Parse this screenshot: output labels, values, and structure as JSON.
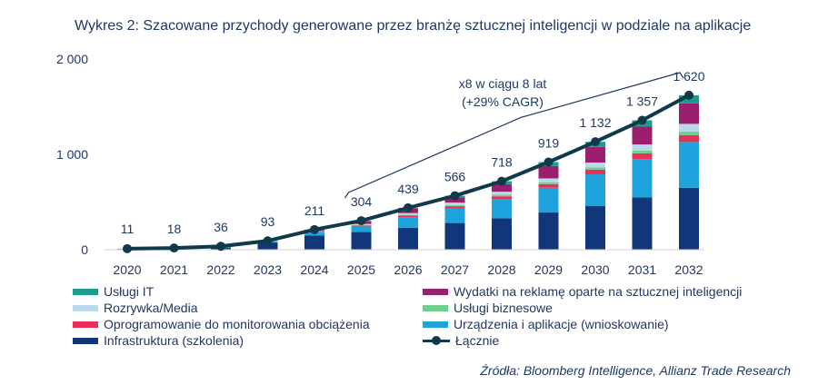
{
  "title": "Wykres 2: Szacowane przychody generowane przez branżę sztucznej inteligencji w podziale na aplikacje",
  "source": "Źródła: Bloomberg Intelligence, Allianz Trade Research",
  "annotation": {
    "line1": "x8 w ciągu 8 lat",
    "line2": "(+29% CAGR)",
    "from_year": "2025",
    "to_year": "2032"
  },
  "chart_data": {
    "type": "bar",
    "stacked": true,
    "categories": [
      "2020",
      "2021",
      "2022",
      "2023",
      "2024",
      "2025",
      "2026",
      "2027",
      "2028",
      "2029",
      "2030",
      "2031",
      "2032"
    ],
    "ylim": [
      0,
      2000
    ],
    "yticks": [
      0,
      1000,
      2000
    ],
    "ytick_labels": [
      "0",
      "1 000",
      "2 000"
    ],
    "series": [
      {
        "name": "Infrastruktura (szkolenia)",
        "color": "#12367a",
        "values": [
          5,
          9,
          18,
          75,
          150,
          185,
          230,
          280,
          330,
          390,
          460,
          550,
          650
        ]
      },
      {
        "name": "Urządzenia i aplikacje (wnioskowanie)",
        "color": "#1ea3dc",
        "values": [
          3,
          5,
          10,
          10,
          30,
          55,
          110,
          150,
          200,
          260,
          330,
          400,
          480
        ]
      },
      {
        "name": "Oprogramowanie do monitorowania obciążenia",
        "color": "#e8315a",
        "values": [
          1,
          1,
          2,
          2,
          6,
          12,
          18,
          26,
          30,
          38,
          50,
          60,
          72
        ]
      },
      {
        "name": "Usługi biznesowe",
        "color": "#6fcf8c",
        "values": [
          0,
          1,
          1,
          1,
          3,
          6,
          8,
          12,
          16,
          20,
          24,
          30,
          38
        ]
      },
      {
        "name": "Rozrywka/Media",
        "color": "#b7d9ea",
        "values": [
          1,
          1,
          2,
          2,
          6,
          12,
          18,
          26,
          32,
          40,
          50,
          64,
          80
        ]
      },
      {
        "name": "Wydatki na reklamę oparte na sztucznej inteligencji",
        "color": "#9b1f6e",
        "values": [
          1,
          1,
          2,
          2,
          12,
          26,
          45,
          55,
          80,
          130,
          165,
          190,
          215
        ]
      },
      {
        "name": "Usługi IT",
        "color": "#1a9e8c",
        "values": [
          0,
          0,
          1,
          1,
          4,
          8,
          10,
          17,
          30,
          41,
          53,
          63,
          85
        ]
      }
    ],
    "total": {
      "name": "Łącznie",
      "color": "#0f3a4a",
      "values": [
        11,
        18,
        36,
        93,
        211,
        304,
        439,
        566,
        718,
        919,
        1132,
        1357,
        1620
      ],
      "labels": [
        "11",
        "18",
        "36",
        "93",
        "211",
        "304",
        "439",
        "566",
        "718",
        "919",
        "1 132",
        "1 357",
        "1 620"
      ]
    },
    "legend_layout": [
      [
        "Usługi IT",
        "Wydatki na reklamę oparte na sztucznej inteligencji"
      ],
      [
        "Rozrywka/Media",
        "Usługi biznesowe"
      ],
      [
        "Oprogramowanie do monitorowania obciążenia",
        "Urządzenia i aplikacje (wnioskowanie)"
      ],
      [
        "Infrastruktura (szkolenia)",
        "Łącznie"
      ]
    ]
  }
}
